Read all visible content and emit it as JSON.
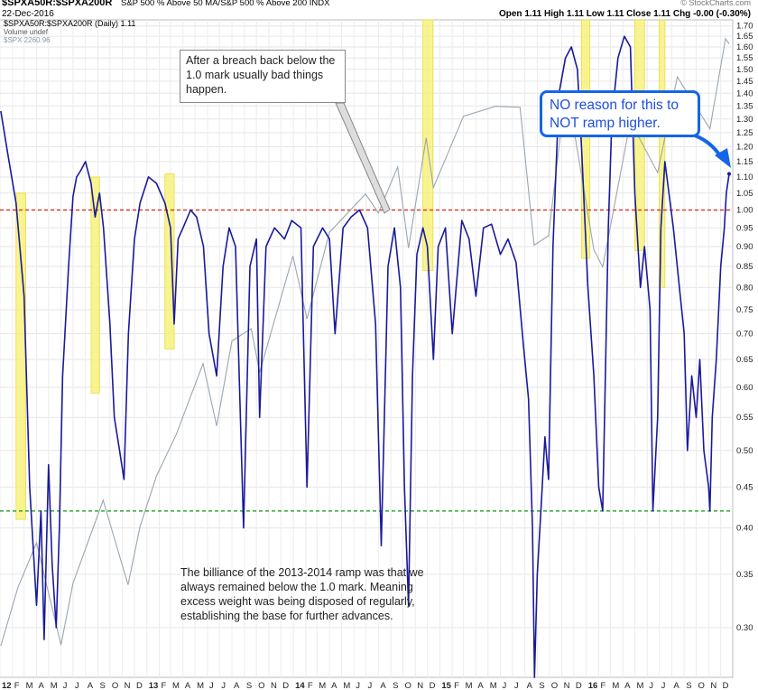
{
  "header": {
    "symbol": "$SPXA50R:$SPXA200R",
    "description": "S&P 500 % Above 50 MA/S&P 500 % Above 200 INDX",
    "date": "22-Dec-2016",
    "source": "© StockCharts.com",
    "ohlc": "Open 1.11  High 1.11  Low 1.11  Close 1.11  Chg -0.00 (-0.30%)",
    "legend_main": "$SPXA50R:$SPXA200R (Daily) 1.11",
    "legend_volume": "Volume undef",
    "legend_spx": "$SPX 2260.96"
  },
  "annotations": {
    "breach_note": "After a breach back below the 1.0 mark usually bad things happen.",
    "ramp_note": "The billiance of the 2013-2014 ramp was that we always remained below the 1.0 mark. Meaning excess weight was being disposed of regularly, establishing the base for further advances.",
    "callout": "NO reason for this to NOT ramp higher."
  },
  "colors": {
    "ratio_line": "#1a1a9a",
    "spx_line": "#9aa6b0",
    "red_ref": "#e0301e",
    "green_ref": "#1f9e1f",
    "highlight": "#f7f06e",
    "callout": "#1565e8"
  },
  "chart_data": {
    "type": "line",
    "log_scale": true,
    "ylim": [
      0.26,
      1.73
    ],
    "y_ticks": [
      "1.70",
      "1.65",
      "1.60",
      "1.55",
      "1.50",
      "1.45",
      "1.40",
      "1.35",
      "1.30",
      "1.25",
      "1.20",
      "1.15",
      "1.10",
      "1.05",
      "1.00",
      "0.95",
      "0.90",
      "0.85",
      "0.80",
      "0.75",
      "0.70",
      "0.65",
      "0.60",
      "0.55",
      "0.50",
      "0.45",
      "0.40",
      "0.35",
      "0.30"
    ],
    "x_ticks": [
      "12",
      "F",
      "M",
      "A",
      "M",
      "J",
      "J",
      "A",
      "S",
      "O",
      "N",
      "D",
      "13",
      "F",
      "M",
      "A",
      "M",
      "J",
      "J",
      "A",
      "S",
      "O",
      "N",
      "D",
      "14",
      "F",
      "M",
      "A",
      "M",
      "J",
      "J",
      "A",
      "S",
      "O",
      "N",
      "D",
      "15",
      "F",
      "M",
      "A",
      "M",
      "J",
      "J",
      "A",
      "S",
      "O",
      "N",
      "D",
      "16",
      "F",
      "M",
      "A",
      "M",
      "J",
      "J",
      "A",
      "S",
      "O",
      "N",
      "D"
    ],
    "x_ticks_bold": [
      "12",
      "13",
      "14",
      "15",
      "16"
    ],
    "reference_lines": [
      {
        "value": 1.0,
        "style": "dashed",
        "color": "red"
      },
      {
        "value": 0.42,
        "style": "dashed",
        "color": "green"
      }
    ],
    "highlight_bands": [
      {
        "start": "2012-02-10",
        "end": "2012-03-05",
        "low": 0.41,
        "high": 1.05
      },
      {
        "start": "2012-08-15",
        "end": "2012-09-05",
        "low": 0.59,
        "high": 1.1
      },
      {
        "start": "2013-02-15",
        "end": "2013-03-10",
        "low": 0.67,
        "high": 1.11
      },
      {
        "start": "2014-11-20",
        "end": "2014-12-15",
        "low": 0.84,
        "high": 2.0
      },
      {
        "start": "2015-12-20",
        "end": "2016-01-10",
        "low": 0.87,
        "high": 2.0
      },
      {
        "start": "2016-05-01",
        "end": "2016-05-25",
        "low": 0.89,
        "high": 2.0
      },
      {
        "start": "2016-07-01",
        "end": "2016-07-15",
        "low": 0.8,
        "high": 2.0
      }
    ],
    "series": [
      {
        "name": "$SPXA50R:$SPXA200R (Daily) 1.11",
        "x": [
          "2012-01-03",
          "2012-01-20",
          "2012-02-10",
          "2012-03-01",
          "2012-03-15",
          "2012-04-01",
          "2012-04-12",
          "2012-04-20",
          "2012-05-01",
          "2012-05-10",
          "2012-05-20",
          "2012-05-28",
          "2012-06-05",
          "2012-06-20",
          "2012-07-01",
          "2012-07-10",
          "2012-07-20",
          "2012-08-01",
          "2012-08-15",
          "2012-08-25",
          "2012-09-05",
          "2012-09-15",
          "2012-10-01",
          "2012-10-12",
          "2012-10-25",
          "2012-11-05",
          "2012-11-16",
          "2012-12-01",
          "2012-12-15",
          "2013-01-05",
          "2013-01-25",
          "2013-02-15",
          "2013-03-01",
          "2013-03-10",
          "2013-03-20",
          "2013-04-05",
          "2013-04-20",
          "2013-05-05",
          "2013-05-22",
          "2013-06-05",
          "2013-06-24",
          "2013-07-10",
          "2013-07-25",
          "2013-08-10",
          "2013-08-30",
          "2013-09-15",
          "2013-10-01",
          "2013-10-09",
          "2013-10-25",
          "2013-11-15",
          "2013-12-10",
          "2013-12-28",
          "2014-01-20",
          "2014-02-04",
          "2014-02-20",
          "2014-03-15",
          "2014-04-01",
          "2014-04-15",
          "2014-05-05",
          "2014-05-25",
          "2014-06-15",
          "2014-07-05",
          "2014-07-25",
          "2014-08-08",
          "2014-08-25",
          "2014-09-10",
          "2014-09-25",
          "2014-10-05",
          "2014-10-15",
          "2014-10-25",
          "2014-11-05",
          "2014-11-20",
          "2014-12-01",
          "2014-12-16",
          "2014-12-28",
          "2015-01-15",
          "2015-02-01",
          "2015-02-25",
          "2015-03-15",
          "2015-04-01",
          "2015-04-20",
          "2015-05-10",
          "2015-06-01",
          "2015-06-20",
          "2015-07-10",
          "2015-07-28",
          "2015-08-10",
          "2015-08-20",
          "2015-08-25",
          "2015-09-01",
          "2015-09-10",
          "2015-09-20",
          "2015-09-29",
          "2015-10-10",
          "2015-10-25",
          "2015-11-10",
          "2015-11-25",
          "2015-12-10",
          "2015-12-20",
          "2016-01-05",
          "2016-01-20",
          "2016-02-01",
          "2016-02-11",
          "2016-02-25",
          "2016-03-05",
          "2016-03-20",
          "2016-04-05",
          "2016-04-20",
          "2016-05-01",
          "2016-05-15",
          "2016-05-25",
          "2016-06-08",
          "2016-06-15",
          "2016-06-27",
          "2016-07-05",
          "2016-07-15",
          "2016-07-25",
          "2016-08-05",
          "2016-08-20",
          "2016-09-01",
          "2016-09-09",
          "2016-09-20",
          "2016-10-01",
          "2016-10-10",
          "2016-10-20",
          "2016-11-01",
          "2016-11-04",
          "2016-11-10",
          "2016-11-20",
          "2016-12-01",
          "2016-12-10",
          "2016-12-15",
          "2016-12-22"
        ],
        "values": [
          1.33,
          1.18,
          1.02,
          0.78,
          0.45,
          0.32,
          0.42,
          0.29,
          0.48,
          0.36,
          0.3,
          0.4,
          0.62,
          0.85,
          1.04,
          1.1,
          1.12,
          1.15,
          1.08,
          0.98,
          1.05,
          0.95,
          0.72,
          0.55,
          0.5,
          0.46,
          0.7,
          0.92,
          1.02,
          1.1,
          1.08,
          1.02,
          0.95,
          0.72,
          0.92,
          0.96,
          1.0,
          0.98,
          0.9,
          0.7,
          0.62,
          0.85,
          0.95,
          0.9,
          0.4,
          0.85,
          0.92,
          0.55,
          0.9,
          0.95,
          0.92,
          0.97,
          0.95,
          0.45,
          0.9,
          0.95,
          0.92,
          0.7,
          0.95,
          0.98,
          1.0,
          0.95,
          0.72,
          0.38,
          0.85,
          0.95,
          0.8,
          0.45,
          0.32,
          0.62,
          0.88,
          0.95,
          0.9,
          0.65,
          0.9,
          0.95,
          0.7,
          0.97,
          0.92,
          0.78,
          0.95,
          0.96,
          0.88,
          0.92,
          0.86,
          0.68,
          0.58,
          0.4,
          0.26,
          0.35,
          0.42,
          0.52,
          0.46,
          0.9,
          1.4,
          1.55,
          1.6,
          1.5,
          1.2,
          0.8,
          0.62,
          0.45,
          0.42,
          0.95,
          1.3,
          1.55,
          1.65,
          1.6,
          1.05,
          0.8,
          0.9,
          0.75,
          0.42,
          0.55,
          0.95,
          1.15,
          1.05,
          0.95,
          0.8,
          0.7,
          0.5,
          0.62,
          0.55,
          0.65,
          0.5,
          0.45,
          0.42,
          0.55,
          0.65,
          0.85,
          0.95,
          1.05,
          1.11
        ]
      },
      {
        "name": "$SPX 2260.96",
        "x": [
          "2012-01-03",
          "2012-02-15",
          "2012-04-01",
          "2012-06-01",
          "2012-07-01",
          "2012-09-14",
          "2012-11-15",
          "2012-12-15",
          "2013-01-25",
          "2013-03-15",
          "2013-05-21",
          "2013-06-24",
          "2013-08-01",
          "2013-09-18",
          "2013-10-09",
          "2013-12-31",
          "2014-02-04",
          "2014-04-01",
          "2014-06-30",
          "2014-08-01",
          "2014-09-18",
          "2014-10-15",
          "2014-11-28",
          "2014-12-16",
          "2015-03-01",
          "2015-05-20",
          "2015-07-20",
          "2015-08-24",
          "2015-09-29",
          "2015-11-03",
          "2015-12-01",
          "2016-01-20",
          "2016-02-11",
          "2016-04-20",
          "2016-06-27",
          "2016-08-15",
          "2016-11-04",
          "2016-12-13",
          "2016-12-22"
        ],
        "values": [
          1277,
          1350,
          1408,
          1278,
          1355,
          1466,
          1353,
          1430,
          1500,
          1560,
          1669,
          1573,
          1705,
          1725,
          1655,
          1848,
          1741,
          1890,
          1960,
          1925,
          2011,
          1862,
          2067,
          1972,
          2110,
          2130,
          2128,
          1867,
          1884,
          2110,
          2085,
          1859,
          1829,
          2100,
          2000,
          2190,
          2085,
          2271,
          2260
        ]
      }
    ]
  }
}
